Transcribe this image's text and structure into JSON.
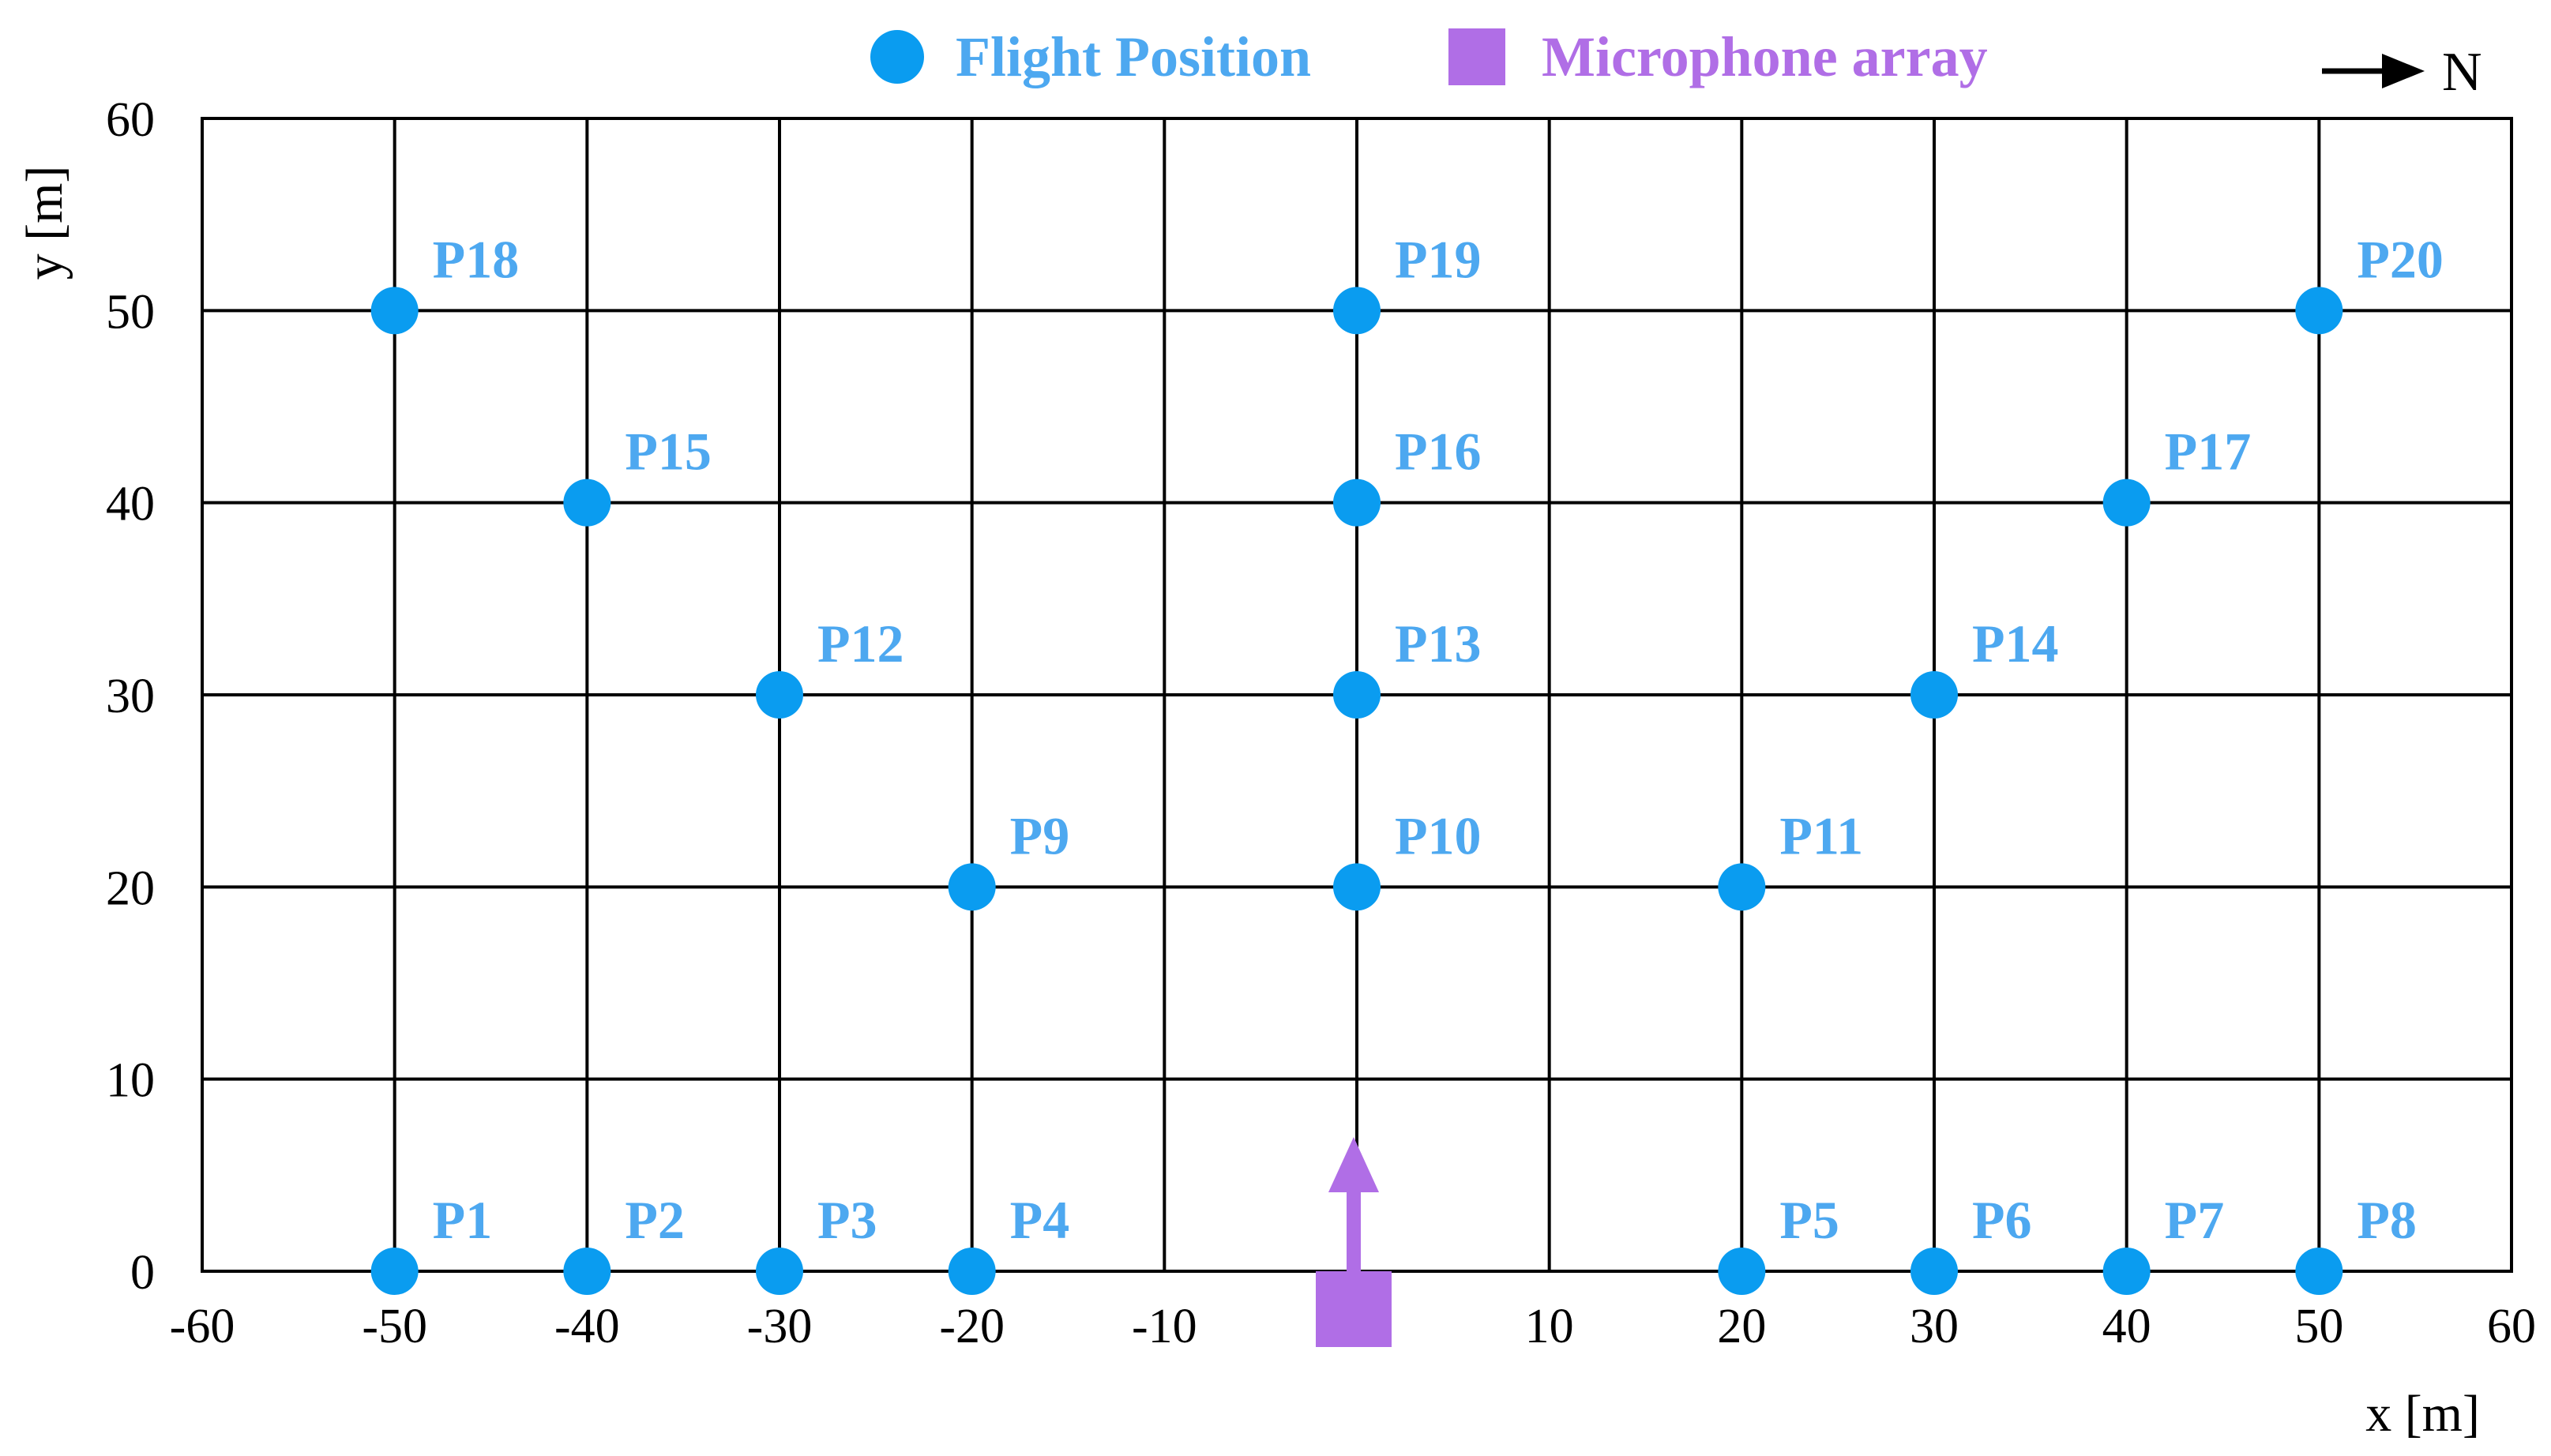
{
  "chart_data": {
    "type": "scatter",
    "title": "",
    "xlabel": "x [m]",
    "ylabel": "y [m]",
    "xlim": [
      -60,
      60
    ],
    "ylim": [
      0,
      60
    ],
    "xticks": [
      -60,
      -50,
      -40,
      -30,
      -20,
      -10,
      10,
      20,
      30,
      40,
      50,
      60
    ],
    "yticks": [
      0,
      10,
      20,
      30,
      40,
      50,
      60
    ],
    "grid_x": [
      -50,
      -40,
      -30,
      -20,
      -10,
      0,
      10,
      20,
      30,
      40,
      50
    ],
    "grid_y": [
      10,
      20,
      30,
      40,
      50
    ],
    "grid": true,
    "legend_placement": "top-center",
    "north_indicator": "N",
    "series": [
      {
        "name": "Flight Position",
        "color": "#0a9cf0",
        "label_color": "#4da8f0",
        "marker": "circle",
        "points": [
          {
            "label": "P1",
            "x": -50,
            "y": 0
          },
          {
            "label": "P2",
            "x": -40,
            "y": 0
          },
          {
            "label": "P3",
            "x": -30,
            "y": 0
          },
          {
            "label": "P4",
            "x": -20,
            "y": 0
          },
          {
            "label": "P5",
            "x": 20,
            "y": 0
          },
          {
            "label": "P6",
            "x": 30,
            "y": 0
          },
          {
            "label": "P7",
            "x": 40,
            "y": 0
          },
          {
            "label": "P8",
            "x": 50,
            "y": 0
          },
          {
            "label": "P9",
            "x": -20,
            "y": 20
          },
          {
            "label": "P10",
            "x": 0,
            "y": 20
          },
          {
            "label": "P11",
            "x": 20,
            "y": 20
          },
          {
            "label": "P12",
            "x": -30,
            "y": 30
          },
          {
            "label": "P13",
            "x": 0,
            "y": 30
          },
          {
            "label": "P14",
            "x": 30,
            "y": 30
          },
          {
            "label": "P15",
            "x": -40,
            "y": 40
          },
          {
            "label": "P16",
            "x": 0,
            "y": 40
          },
          {
            "label": "P17",
            "x": 40,
            "y": 40
          },
          {
            "label": "P18",
            "x": -50,
            "y": 50
          },
          {
            "label": "P19",
            "x": 0,
            "y": 50
          },
          {
            "label": "P20",
            "x": 50,
            "y": 50
          }
        ]
      },
      {
        "name": "Microphone array",
        "color": "#b06ee6",
        "label_color": "#b06ee6",
        "marker": "square",
        "points": [
          {
            "x": 0,
            "y": 0
          }
        ]
      }
    ]
  }
}
